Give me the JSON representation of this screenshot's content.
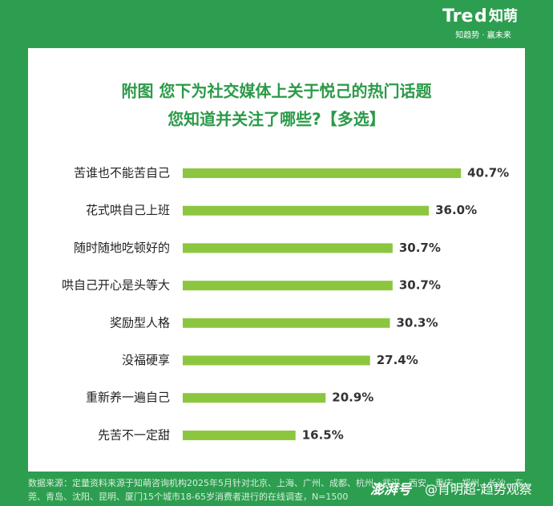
{
  "header": {
    "logo_en": "Tre",
    "logo_mark": "d",
    "logo_cn": "知萌",
    "slogan": "知趋势 · 赢未来"
  },
  "chart_data": {
    "type": "bar",
    "title": [
      "附图 您下为社交媒体上关于悦己的热门话题",
      "您知道并关注了哪些?【多选】"
    ],
    "categories": [
      "苦谁也不能苦自己",
      "花式哄自己上班",
      "随时随地吃顿好的",
      "哄自己开心是头等大",
      "奖励型人格",
      "没福硬享",
      "重新养一遍自己",
      "先苦不一定甜"
    ],
    "values": [
      40.7,
      36.0,
      30.7,
      30.7,
      30.3,
      27.4,
      20.9,
      16.5
    ],
    "value_labels": [
      "40.7%",
      "36.0%",
      "30.7%",
      "30.7%",
      "30.3%",
      "27.4%",
      "20.9%",
      "16.5%"
    ],
    "color": "#8cc63f"
  },
  "footer": {
    "source": "数据来源：定量资料来源于知萌咨询机构2025年5月针对北京、上海、广州、成都、杭州、武汉、西安、重庆、郑州、长沙、东莞、青岛、沈阳、昆明、厦门15个城市18-65岁消费者进行的在线调查，N=1500"
  },
  "watermark": {
    "platform": "澎湃号",
    "author": "@肖明超-趋势观察"
  }
}
